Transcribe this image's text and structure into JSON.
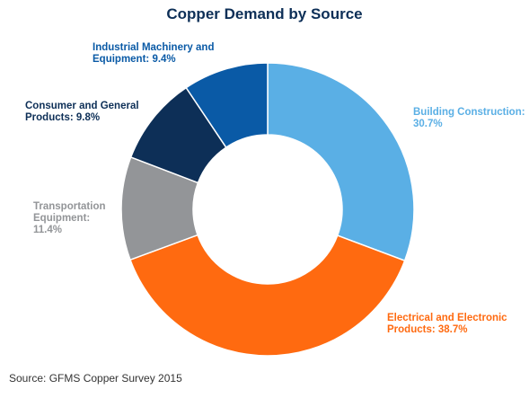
{
  "chart_data": {
    "type": "pie",
    "donut": true,
    "title": "Copper Demand by Source",
    "source": "Source: GFMS Copper Survey 2015",
    "slices": [
      {
        "name": "Building Construction",
        "value": 30.7,
        "line1": "Building Construction:",
        "line2": "30.7%",
        "color": "#5aafe5"
      },
      {
        "name": "Electrical and Electronic Products",
        "value": 38.7,
        "line1": "Electrical and Electronic",
        "line2": "Products: 38.7%",
        "color": "#ff6a10"
      },
      {
        "name": "Transportation Equipment",
        "value": 11.4,
        "line1": "Transportation",
        "line2": "Equipment:",
        "line3": "11.4%",
        "color": "#939598"
      },
      {
        "name": "Consumer and General Products",
        "value": 9.8,
        "line1": "Consumer and General",
        "line2": "Products: 9.8%",
        "color": "#0d2f57"
      },
      {
        "name": "Industrial Machinery and Equipment",
        "value": 9.4,
        "line1": "Industrial Machinery and",
        "line2": "Equipment: 9.4%",
        "color": "#0a5aa6"
      }
    ]
  }
}
